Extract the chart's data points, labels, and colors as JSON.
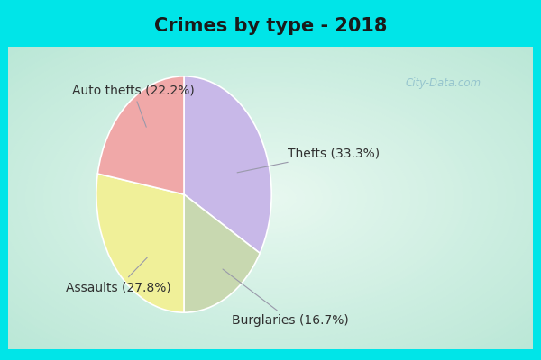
{
  "title": "Crimes by type - 2018",
  "slices": [
    {
      "label": "Thefts (33.3%)",
      "value": 33.3,
      "color": "#C8B8E8"
    },
    {
      "label": "Burglaries (16.7%)",
      "value": 16.7,
      "color": "#C8D8B0"
    },
    {
      "label": "Assaults (27.8%)",
      "value": 27.8,
      "color": "#F0F099"
    },
    {
      "label": "Auto thefts (22.2%)",
      "value": 22.2,
      "color": "#F0A8A8"
    }
  ],
  "bg_cyan": "#00E5E8",
  "bg_center": "#E8F8F0",
  "bg_edge": "#A8E0CC",
  "watermark": "City-Data.com",
  "title_fontsize": 15,
  "label_fontsize": 10,
  "label_color": "#303030",
  "title_color": "#1a1a1a"
}
